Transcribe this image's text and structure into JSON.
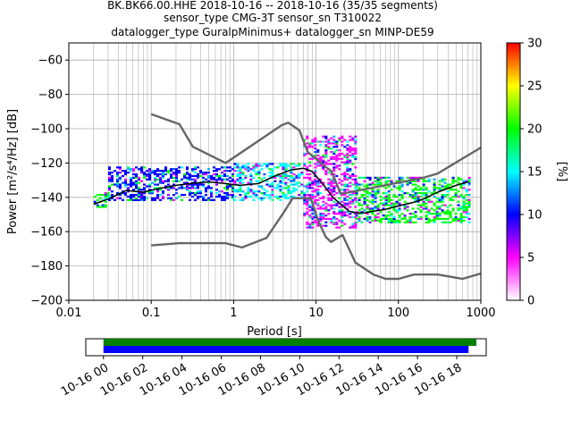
{
  "title": {
    "line1": "BK.BK66.00.HHE   2018-10-16 -- 2018-10-16  (35/35 segments)",
    "line2": "sensor_type CMG-3T sensor_sn T310022",
    "line3": "datalogger_type GuralpMinimus+ datalogger_sn MINP-DE59"
  },
  "chart_data": {
    "type": "heatmap",
    "title": "BK.BK66.00.HHE   2018-10-16 -- 2018-10-16  (35/35 segments)",
    "xlabel": "Period [s]",
    "ylabel": "Power [m²/s⁴/Hz] [dB]",
    "x_scale": "log",
    "xlim": [
      0.01,
      1000
    ],
    "ylim": [
      -200,
      -50
    ],
    "xticks": [
      0.01,
      0.1,
      1,
      10,
      100,
      1000
    ],
    "xtick_labels": [
      "0.01",
      "0.1",
      "1",
      "10",
      "100",
      "1000"
    ],
    "yticks": [
      -200,
      -180,
      -160,
      -140,
      -120,
      -100,
      -80,
      -60
    ],
    "ytick_labels": [
      "−200",
      "−180",
      "−160",
      "−140",
      "−120",
      "−100",
      "−80",
      "−60"
    ],
    "grid": true,
    "colorbar": {
      "label": "[%]",
      "range": [
        0,
        30
      ],
      "ticks": [
        0,
        5,
        10,
        15,
        20,
        25,
        30
      ],
      "tick_labels": [
        "0",
        "5",
        "10",
        "15",
        "20",
        "25",
        "30"
      ],
      "colormap": [
        "#ffffff",
        "#ff00ff",
        "#0000ff",
        "#00ffff",
        "#00ff00",
        "#ffff00",
        "#ff0000"
      ]
    },
    "series": [
      {
        "style": "gray-thick",
        "x": [
          0.1,
          0.22,
          0.32,
          0.8,
          3.8,
          4.6,
          6.3,
          7.9,
          15.4,
          20,
          200,
          300,
          1000
        ],
        "y": [
          -91.5,
          -97.4,
          -110.5,
          -120,
          -98,
          -96.5,
          -101,
          -113.5,
          -125,
          -138,
          -128.6,
          -126.1,
          -111
        ]
      },
      {
        "style": "gray-thick",
        "x": [
          0.1,
          0.22,
          0.8,
          1.26,
          2.5,
          4.1,
          5.2,
          8.6,
          10.8,
          13.1,
          15.2,
          21,
          30,
          50,
          70,
          100,
          155,
          300,
          600,
          1000
        ],
        "y": [
          -168,
          -166.7,
          -166.7,
          -169.2,
          -163.7,
          -148.5,
          -140.5,
          -140.5,
          -154.5,
          -163,
          -166,
          -162,
          -178,
          -185,
          -187.5,
          -187.5,
          -185,
          -185,
          -187.5,
          -184.4
        ]
      },
      {
        "style": "black-mean",
        "x": [
          0.02,
          0.03,
          0.05,
          0.08,
          0.12,
          0.2,
          0.3,
          0.5,
          0.8,
          1.2,
          2,
          3,
          5,
          7,
          9,
          12,
          16,
          20,
          25,
          30,
          40,
          50,
          70,
          100,
          150,
          200,
          300,
          500,
          700
        ],
        "y": [
          -144,
          -141,
          -136,
          -137,
          -135,
          -133,
          -132,
          -131,
          -132,
          -133,
          -132,
          -128,
          -124,
          -123,
          -125,
          -132,
          -140,
          -144,
          -148,
          -149,
          -149,
          -148,
          -147,
          -145,
          -143,
          -141,
          -137,
          -133,
          -131
        ]
      }
    ],
    "density_estimate": [
      {
        "x_start": 0.02,
        "x_end": 0.03,
        "y_min": -146,
        "y_max": -137,
        "dominant_color": "#00ff00"
      },
      {
        "x_start": 0.03,
        "x_end": 1.0,
        "y_min": -142,
        "y_max": -122,
        "dominant_color": "#0000ff"
      },
      {
        "x_start": 1.0,
        "x_end": 7,
        "y_min": -142,
        "y_max": -120,
        "dominant_color": "#00ffff"
      },
      {
        "x_start": 7,
        "x_end": 30,
        "y_min": -158,
        "y_max": -104,
        "dominant_color": "#ff00ff"
      },
      {
        "x_start": 30,
        "x_end": 700,
        "y_min": -155,
        "y_max": -128,
        "dominant_color": "#00ff00"
      }
    ]
  },
  "timeline": {
    "tick_labels": [
      "10-16 00",
      "10-16 02",
      "10-16 04",
      "10-16 06",
      "10-16 08",
      "10-16 10",
      "10-16 12",
      "10-16 14",
      "10-16 16",
      "10-16 18"
    ],
    "tick_hours": [
      0,
      2,
      4,
      6,
      8,
      10,
      12,
      14,
      16,
      18
    ],
    "xlim_hours": [
      -0.9,
      19.5
    ],
    "bars": [
      {
        "color": "#008000",
        "start_hour": 0,
        "end_hour": 19.0
      },
      {
        "color": "#0000ff",
        "start_hour": 0,
        "end_hour": 18.6
      }
    ]
  }
}
